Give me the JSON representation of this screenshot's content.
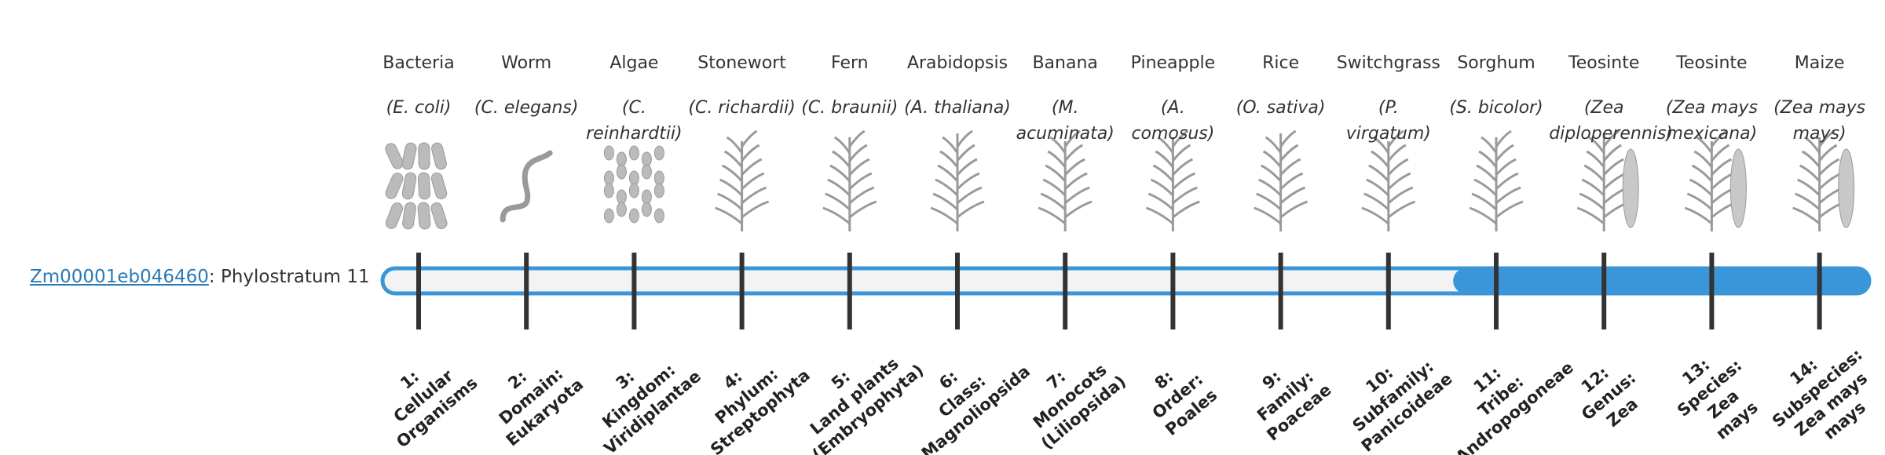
{
  "gene": {
    "id": "Zm00001eb046460",
    "suffix": ": Phylostratum 11"
  },
  "active_stratum": 11,
  "organisms": [
    {
      "name": "Bacteria",
      "species": "(E. coli)"
    },
    {
      "name": "Worm",
      "species": "(C. elegans)"
    },
    {
      "name": "Algae",
      "species": "(C. reinhardtii)"
    },
    {
      "name": "Stonewort",
      "species": "(C. richardii)"
    },
    {
      "name": "Fern",
      "species": "(C. braunii)"
    },
    {
      "name": "Arabidopsis",
      "species": "(A. thaliana)"
    },
    {
      "name": "Banana",
      "species": "(M. acuminata)"
    },
    {
      "name": "Pineapple",
      "species": "(A. comosus)"
    },
    {
      "name": "Rice",
      "species": "(O. sativa)"
    },
    {
      "name": "Switchgrass",
      "species": "(P. virgatum)"
    },
    {
      "name": "Sorghum",
      "species": "(S. bicolor)"
    },
    {
      "name": "Teosinte",
      "species": "(Zea diploperennis)"
    },
    {
      "name": "Teosinte",
      "species": "(Zea mays mexicana)"
    },
    {
      "name": "Maize",
      "species": "(Zea mays mays)"
    }
  ],
  "strata": [
    {
      "lines": [
        "1:",
        "Cellular",
        "Organisms"
      ]
    },
    {
      "lines": [
        "2:",
        "Domain:",
        "Eukaryota"
      ]
    },
    {
      "lines": [
        "3:",
        "Kingdom:",
        "Viridiplantae"
      ]
    },
    {
      "lines": [
        "4:",
        "Phylum:",
        "Streptophyta"
      ]
    },
    {
      "lines": [
        "5:",
        "Land plants",
        "(Embryophyta)"
      ]
    },
    {
      "lines": [
        "6:",
        "Class:",
        "Magnoliopsida"
      ]
    },
    {
      "lines": [
        "7:",
        "Monocots",
        "(Liliopsida)"
      ]
    },
    {
      "lines": [
        "8:",
        "Order:",
        "Poales"
      ]
    },
    {
      "lines": [
        "9:",
        "Family:",
        "Poaceae"
      ]
    },
    {
      "lines": [
        "10:",
        "Subfamily:",
        "Panicoideae"
      ]
    },
    {
      "lines": [
        "11:",
        "Tribe:",
        "Andropogoneae"
      ]
    },
    {
      "lines": [
        "12:",
        "Genus:",
        "Zea"
      ]
    },
    {
      "lines": [
        "13:",
        "Species:",
        "Zea",
        "mays"
      ]
    },
    {
      "lines": [
        "14:",
        "Subspecies:",
        "Zea mays",
        "mays"
      ]
    }
  ]
}
